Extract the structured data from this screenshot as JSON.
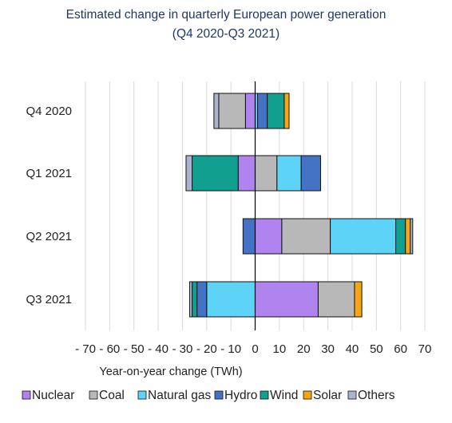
{
  "chart_data": {
    "type": "bar",
    "orientation": "horizontal",
    "stacked": true,
    "title": "Estimated change in quarterly European power generation",
    "subtitle": "(Q4 2020-Q3 2021)",
    "xlabel": "Year-on-year change (TWh)",
    "ylabel": "",
    "xlim": [
      -70,
      70
    ],
    "xticks": [
      -70,
      -60,
      -50,
      -40,
      -30,
      -20,
      -10,
      0,
      10,
      20,
      30,
      40,
      50,
      60,
      70
    ],
    "xtick_labels": [
      "- 70",
      "- 60",
      "- 50",
      "- 40",
      "- 30",
      "- 20",
      "- 10",
      "0",
      "10",
      "20",
      "30",
      "40",
      "50",
      "60",
      "70"
    ],
    "grid": "vertical",
    "legend_position": "bottom",
    "categories": [
      "Q4 2020",
      "Q1 2021",
      "Q2 2021",
      "Q3 2021"
    ],
    "series": [
      {
        "name": "Nuclear",
        "color": "#b084ee",
        "values": [
          -4,
          -7,
          11,
          26
        ]
      },
      {
        "name": "Coal",
        "color": "#b8b8b8",
        "values": [
          -11,
          9,
          20,
          15
        ]
      },
      {
        "name": "Natural gas",
        "color": "#5dd3f7",
        "values": [
          1,
          10,
          27,
          -20
        ]
      },
      {
        "name": "Hydro",
        "color": "#4472c4",
        "values": [
          4,
          8,
          -5,
          -4
        ]
      },
      {
        "name": "Wind",
        "color": "#119f8f",
        "values": [
          7,
          -19,
          4,
          -2
        ]
      },
      {
        "name": "Solar",
        "color": "#f5a515",
        "values": [
          2,
          0,
          2,
          3
        ]
      },
      {
        "name": "Others",
        "color": "#aab4cf",
        "values": [
          -2,
          -2.5,
          1,
          -1
        ]
      }
    ]
  }
}
